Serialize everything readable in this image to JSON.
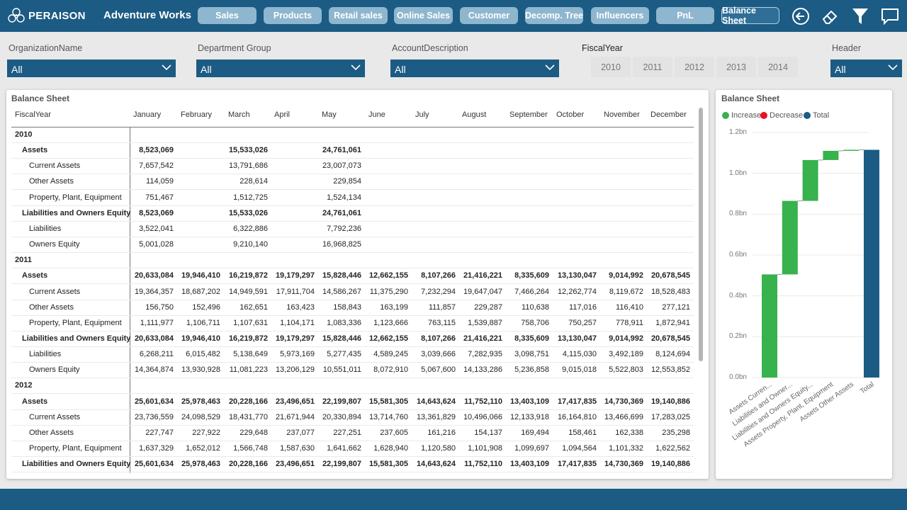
{
  "app": {
    "logo_text": "PERAISON",
    "title": "Adventure Works"
  },
  "nav": [
    {
      "label": "Sales"
    },
    {
      "label": "Products"
    },
    {
      "label": "Retail sales"
    },
    {
      "label": "Online Sales"
    },
    {
      "label": "Customer"
    },
    {
      "label": "Decomp. Tree"
    },
    {
      "label": "Influencers"
    },
    {
      "label": "PnL"
    },
    {
      "label": "Balance Sheet",
      "active": true
    }
  ],
  "toolbar_icons": [
    "back-arrow-icon",
    "eraser-icon",
    "filter-icon",
    "comment-icon"
  ],
  "slicers": [
    {
      "label": "OrganizationName",
      "value": "All"
    },
    {
      "label": "Department Group",
      "value": "All"
    },
    {
      "label": "AccountDescription",
      "value": "All"
    },
    {
      "label": "Header",
      "value": "All"
    }
  ],
  "fiscal_year": {
    "label": "FiscalYear",
    "years": [
      "2010",
      "2011",
      "2012",
      "2013",
      "2014"
    ]
  },
  "matrix": {
    "title": "Balance Sheet",
    "row_header": "FiscalYear",
    "months": [
      "January",
      "February",
      "March",
      "April",
      "May",
      "June",
      "July",
      "August",
      "September",
      "October",
      "November",
      "December"
    ],
    "rows": [
      {
        "type": "year",
        "label": "2010",
        "values": []
      },
      {
        "type": "group",
        "label": "Assets",
        "values": [
          "8,523,069",
          "",
          "15,533,026",
          "",
          "24,761,061",
          "",
          "",
          "",
          "",
          "",
          "",
          ""
        ]
      },
      {
        "type": "sub",
        "label": "Current Assets",
        "values": [
          "7,657,542",
          "",
          "13,791,686",
          "",
          "23,007,073",
          "",
          "",
          "",
          "",
          "",
          "",
          ""
        ]
      },
      {
        "type": "sub",
        "label": "Other Assets",
        "values": [
          "114,059",
          "",
          "228,614",
          "",
          "229,854",
          "",
          "",
          "",
          "",
          "",
          "",
          ""
        ]
      },
      {
        "type": "sub",
        "label": "Property, Plant, Equipment",
        "values": [
          "751,467",
          "",
          "1,512,725",
          "",
          "1,524,134",
          "",
          "",
          "",
          "",
          "",
          "",
          ""
        ]
      },
      {
        "type": "group",
        "label": "Liabilities and Owners Equity",
        "values": [
          "8,523,069",
          "",
          "15,533,026",
          "",
          "24,761,061",
          "",
          "",
          "",
          "",
          "",
          "",
          ""
        ]
      },
      {
        "type": "sub",
        "label": "Liabilities",
        "values": [
          "3,522,041",
          "",
          "6,322,886",
          "",
          "7,792,236",
          "",
          "",
          "",
          "",
          "",
          "",
          ""
        ]
      },
      {
        "type": "sub",
        "label": "Owners Equity",
        "values": [
          "5,001,028",
          "",
          "9,210,140",
          "",
          "16,968,825",
          "",
          "",
          "",
          "",
          "",
          "",
          ""
        ]
      },
      {
        "type": "year",
        "label": "2011",
        "values": []
      },
      {
        "type": "group",
        "label": "Assets",
        "values": [
          "20,633,084",
          "19,946,410",
          "16,219,872",
          "19,179,297",
          "15,828,446",
          "12,662,155",
          "8,107,266",
          "21,416,221",
          "8,335,609",
          "13,130,047",
          "9,014,992",
          "20,678,545"
        ]
      },
      {
        "type": "sub",
        "label": "Current Assets",
        "values": [
          "19,364,357",
          "18,687,202",
          "14,949,591",
          "17,911,704",
          "14,586,267",
          "11,375,290",
          "7,232,294",
          "19,647,047",
          "7,466,264",
          "12,262,774",
          "8,119,672",
          "18,528,483"
        ]
      },
      {
        "type": "sub",
        "label": "Other Assets",
        "values": [
          "156,750",
          "152,496",
          "162,651",
          "163,423",
          "158,843",
          "163,199",
          "111,857",
          "229,287",
          "110,638",
          "117,016",
          "116,410",
          "277,121"
        ]
      },
      {
        "type": "sub",
        "label": "Property, Plant, Equipment",
        "values": [
          "1,111,977",
          "1,106,711",
          "1,107,631",
          "1,104,171",
          "1,083,336",
          "1,123,666",
          "763,115",
          "1,539,887",
          "758,706",
          "750,257",
          "778,911",
          "1,872,941"
        ]
      },
      {
        "type": "group",
        "label": "Liabilities and Owners Equity",
        "values": [
          "20,633,084",
          "19,946,410",
          "16,219,872",
          "19,179,297",
          "15,828,446",
          "12,662,155",
          "8,107,266",
          "21,416,221",
          "8,335,609",
          "13,130,047",
          "9,014,992",
          "20,678,545"
        ]
      },
      {
        "type": "sub",
        "label": "Liabilities",
        "values": [
          "6,268,211",
          "6,015,482",
          "5,138,649",
          "5,973,169",
          "5,277,435",
          "4,589,245",
          "3,039,666",
          "7,282,935",
          "3,098,751",
          "4,115,030",
          "3,492,189",
          "8,124,694"
        ]
      },
      {
        "type": "sub",
        "label": "Owners Equity",
        "values": [
          "14,364,874",
          "13,930,928",
          "11,081,223",
          "13,206,129",
          "10,551,011",
          "8,072,910",
          "5,067,600",
          "14,133,286",
          "5,236,858",
          "9,015,018",
          "5,522,803",
          "12,553,852"
        ]
      },
      {
        "type": "year",
        "label": "2012",
        "values": []
      },
      {
        "type": "group",
        "label": "Assets",
        "values": [
          "25,601,634",
          "25,978,463",
          "20,228,166",
          "23,496,651",
          "22,199,807",
          "15,581,305",
          "14,643,624",
          "11,752,110",
          "13,403,109",
          "17,417,835",
          "14,730,369",
          "19,140,886"
        ]
      },
      {
        "type": "sub",
        "label": "Current Assets",
        "values": [
          "23,736,559",
          "24,098,529",
          "18,431,770",
          "21,671,944",
          "20,330,894",
          "13,714,760",
          "13,361,829",
          "10,496,066",
          "12,133,918",
          "16,164,810",
          "13,466,699",
          "17,283,025"
        ]
      },
      {
        "type": "sub",
        "label": "Other Assets",
        "values": [
          "227,747",
          "227,922",
          "229,648",
          "237,077",
          "227,251",
          "237,605",
          "161,216",
          "154,137",
          "169,494",
          "158,461",
          "162,338",
          "235,298"
        ]
      },
      {
        "type": "sub",
        "label": "Property, Plant, Equipment",
        "values": [
          "1,637,329",
          "1,652,012",
          "1,566,748",
          "1,587,630",
          "1,641,662",
          "1,628,940",
          "1,120,580",
          "1,101,908",
          "1,099,697",
          "1,094,564",
          "1,101,332",
          "1,622,562"
        ]
      },
      {
        "type": "group",
        "label": "Liabilities and Owners Equity",
        "values": [
          "25,601,634",
          "25,978,463",
          "20,228,166",
          "23,496,651",
          "22,199,807",
          "15,581,305",
          "14,643,624",
          "11,752,110",
          "13,403,109",
          "17,417,835",
          "14,730,369",
          "19,140,886"
        ]
      }
    ]
  },
  "waterfall": {
    "title": "Balance Sheet"
  },
  "chart_data": {
    "type": "waterfall",
    "title": "Balance Sheet",
    "legend": [
      {
        "name": "Increase",
        "color": "#37b24d"
      },
      {
        "name": "Decrease",
        "color": "#e81123"
      },
      {
        "name": "Total",
        "color": "#1c5b83"
      }
    ],
    "legend_position": "top-left",
    "y_ticks": [
      "0.0bn",
      "0.2bn",
      "0.4bn",
      "0.6bn",
      "0.8bn",
      "1.0bn",
      "1.2bn"
    ],
    "ylim": [
      0,
      1.2
    ],
    "categories": [
      "Assets Curren...",
      "Liabilities and Owner...",
      "Liabilities and Owners Equity...",
      "Assets Property, Plant, Equipment",
      "Assets Other Assets",
      "Total"
    ],
    "values": [
      0.505,
      0.36,
      0.2,
      0.045,
      0.005,
      1.115
    ],
    "kinds": [
      "increase",
      "increase",
      "increase",
      "increase",
      "increase",
      "total"
    ],
    "grid": true
  }
}
